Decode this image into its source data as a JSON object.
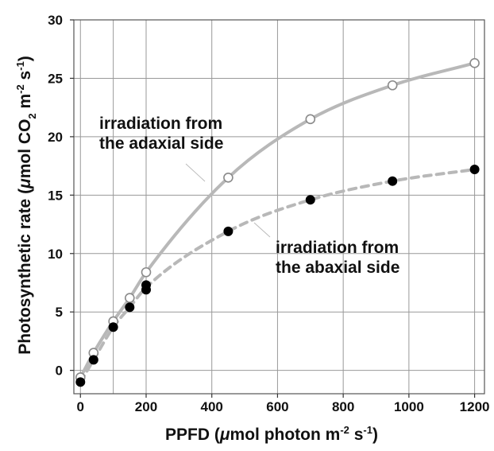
{
  "chart_data": {
    "type": "scatter",
    "xlabel": {
      "prefix": "PPFD (",
      "mu": "μ",
      "main": "mol photon m",
      "exp1": "-2",
      "middle": " s",
      "exp2": "-1",
      "suffix": ")"
    },
    "ylabel": {
      "prefix": "Photosynthetic rate (",
      "mu": "μ",
      "main": "mol CO",
      "sub": "2",
      "middle": " m",
      "exp1": "-2",
      "middle2": " s",
      "exp2": "-1",
      "suffix": ")"
    },
    "xlim": [
      -20,
      1230
    ],
    "ylim": [
      -2,
      30
    ],
    "xticks": [
      0,
      200,
      400,
      600,
      800,
      1000,
      1200
    ],
    "yticks": [
      0,
      5,
      10,
      15,
      20,
      25,
      30
    ],
    "xgrid": [
      0,
      100,
      200,
      400,
      600,
      800,
      1000,
      1200
    ],
    "grid": true,
    "series": [
      {
        "key": "adaxial",
        "marker": "open-circle",
        "line_style": "solid",
        "line_color": "#b8b8b8",
        "x": [
          0,
          40,
          100,
          150,
          200,
          450,
          700,
          950,
          1200
        ],
        "y": [
          -0.6,
          1.5,
          4.2,
          6.2,
          8.4,
          16.5,
          21.5,
          24.4,
          26.3
        ]
      },
      {
        "key": "abaxial",
        "marker": "filled-circle",
        "line_style": "dashed",
        "line_color": "#b8b8b8",
        "x": [
          0,
          40,
          100,
          150,
          200,
          200,
          450,
          700,
          950,
          1200
        ],
        "y": [
          -1.0,
          0.9,
          3.7,
          5.4,
          6.9,
          7.3,
          11.9,
          14.6,
          16.2,
          17.2
        ]
      }
    ],
    "annotations": [
      {
        "key": "adaxial",
        "lines": [
          "irradiation from",
          "the adaxial side"
        ]
      },
      {
        "key": "abaxial",
        "lines": [
          "irradiation from",
          "the abaxial side"
        ]
      }
    ]
  }
}
